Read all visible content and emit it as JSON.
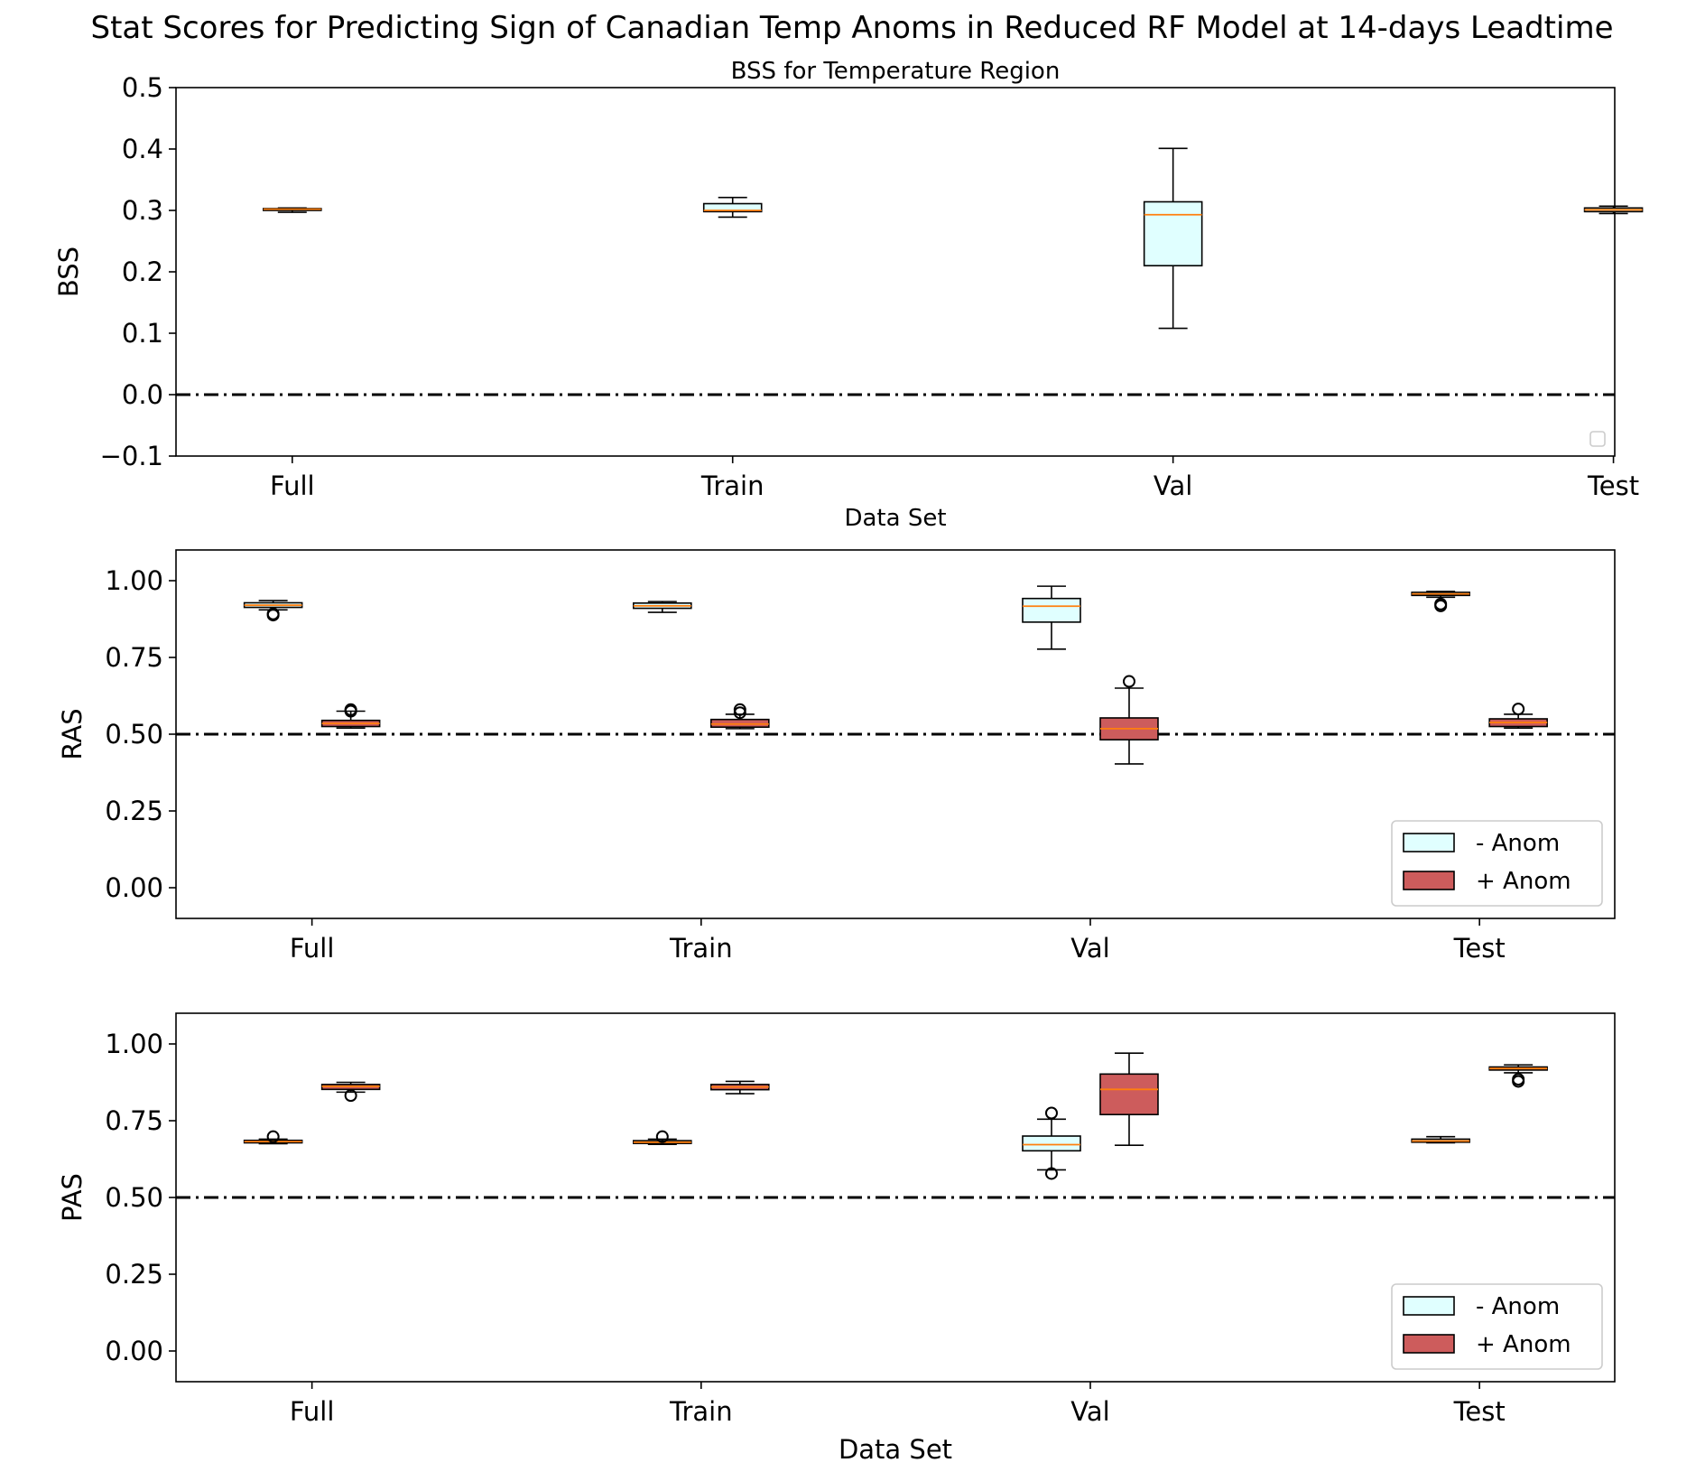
{
  "figure": {
    "suptitle": "Stat Scores for Predicting Sign of Canadian Temp Anoms in Reduced RF Model at 14-days Leadtime"
  },
  "colors": {
    "neg_box_fill": "#E0FFFF",
    "pos_box_fill": "#CD5C5C",
    "median_line": "#FF7F0E",
    "reference_line": "#000000",
    "box_edge": "#000000"
  },
  "chart_data": [
    {
      "type": "box",
      "title": "BSS for Temperature Region",
      "xlabel": "Data Set",
      "ylabel": "BSS",
      "categories": [
        "Full",
        "Train",
        "Val",
        "Test"
      ],
      "ylim": [
        -0.1,
        0.5
      ],
      "yticks": [
        -0.1,
        0.0,
        0.1,
        0.2,
        0.3,
        0.4,
        0.5
      ],
      "ytick_labels": [
        "−0.1",
        "0.0",
        "0.1",
        "0.2",
        "0.3",
        "0.4",
        "0.5"
      ],
      "reference_line": 0.0,
      "legend": {
        "placement": "lower right",
        "entries": []
      },
      "series": [
        {
          "boxes": [
            {
              "category": "Full",
              "whislo": 0.297,
              "q1": 0.3,
              "med": 0.302,
              "q3": 0.303,
              "whishi": 0.304,
              "fliers": []
            },
            {
              "category": "Train",
              "whislo": 0.289,
              "q1": 0.298,
              "med": 0.3,
              "q3": 0.311,
              "whishi": 0.321,
              "fliers": []
            },
            {
              "category": "Val",
              "whislo": 0.108,
              "q1": 0.21,
              "med": 0.293,
              "q3": 0.314,
              "whishi": 0.401,
              "fliers": []
            },
            {
              "category": "Test",
              "whislo": 0.295,
              "q1": 0.298,
              "med": 0.301,
              "q3": 0.304,
              "whishi": 0.307,
              "fliers": []
            }
          ]
        }
      ]
    },
    {
      "type": "box",
      "title": "",
      "xlabel": "",
      "ylabel": "RAS",
      "categories": [
        "Full",
        "Train",
        "Val",
        "Test"
      ],
      "ylim": [
        -0.1,
        1.1
      ],
      "yticks": [
        0.0,
        0.25,
        0.5,
        0.75,
        1.0
      ],
      "ytick_labels": [
        "0.00",
        "0.25",
        "0.50",
        "0.75",
        "1.00"
      ],
      "reference_line": 0.5,
      "legend": {
        "placement": "lower right",
        "entries": [
          "- Anom",
          "+ Anom"
        ]
      },
      "series": [
        {
          "name": "- Anom",
          "boxes": [
            {
              "category": "Full",
              "whislo": 0.905,
              "q1": 0.913,
              "med": 0.92,
              "q3": 0.928,
              "whishi": 0.935,
              "fliers": [
                0.892,
                0.888
              ]
            },
            {
              "category": "Train",
              "whislo": 0.897,
              "q1": 0.91,
              "med": 0.918,
              "q3": 0.927,
              "whishi": 0.932,
              "fliers": []
            },
            {
              "category": "Val",
              "whislo": 0.777,
              "q1": 0.865,
              "med": 0.917,
              "q3": 0.942,
              "whishi": 0.982,
              "fliers": []
            },
            {
              "category": "Test",
              "whislo": 0.946,
              "q1": 0.952,
              "med": 0.957,
              "q3": 0.962,
              "whishi": 0.965,
              "fliers": [
                0.924,
                0.918
              ]
            }
          ]
        },
        {
          "name": "+ Anom",
          "boxes": [
            {
              "category": "Full",
              "whislo": 0.52,
              "q1": 0.525,
              "med": 0.535,
              "q3": 0.545,
              "whishi": 0.575,
              "fliers": [
                0.58,
                0.575
              ]
            },
            {
              "category": "Train",
              "whislo": 0.518,
              "q1": 0.523,
              "med": 0.533,
              "q3": 0.548,
              "whishi": 0.565,
              "fliers": [
                0.58,
                0.57
              ]
            },
            {
              "category": "Val",
              "whislo": 0.403,
              "q1": 0.482,
              "med": 0.518,
              "q3": 0.553,
              "whishi": 0.65,
              "fliers": [
                0.672
              ]
            },
            {
              "category": "Test",
              "whislo": 0.52,
              "q1": 0.525,
              "med": 0.538,
              "q3": 0.55,
              "whishi": 0.565,
              "fliers": [
                0.582
              ]
            }
          ]
        }
      ]
    },
    {
      "type": "box",
      "title": "",
      "xlabel": "Data Set",
      "ylabel": "PAS",
      "categories": [
        "Full",
        "Train",
        "Val",
        "Test"
      ],
      "ylim": [
        -0.1,
        1.1
      ],
      "yticks": [
        0.0,
        0.25,
        0.5,
        0.75,
        1.0
      ],
      "ytick_labels": [
        "0.00",
        "0.25",
        "0.50",
        "0.75",
        "1.00"
      ],
      "reference_line": 0.5,
      "legend": {
        "placement": "lower right",
        "entries": [
          "- Anom",
          "+ Anom"
        ]
      },
      "series": [
        {
          "name": "- Anom",
          "boxes": [
            {
              "category": "Full",
              "whislo": 0.675,
              "q1": 0.678,
              "med": 0.682,
              "q3": 0.686,
              "whishi": 0.69,
              "fliers": [
                0.698
              ]
            },
            {
              "category": "Train",
              "whislo": 0.673,
              "q1": 0.676,
              "med": 0.68,
              "q3": 0.685,
              "whishi": 0.69,
              "fliers": [
                0.698
              ]
            },
            {
              "category": "Val",
              "whislo": 0.59,
              "q1": 0.652,
              "med": 0.672,
              "q3": 0.7,
              "whishi": 0.755,
              "fliers": [
                0.775,
                0.578
              ]
            },
            {
              "category": "Test",
              "whislo": 0.678,
              "q1": 0.68,
              "med": 0.684,
              "q3": 0.69,
              "whishi": 0.698,
              "fliers": []
            }
          ]
        },
        {
          "name": "+ Anom",
          "boxes": [
            {
              "category": "Full",
              "whislo": 0.843,
              "q1": 0.852,
              "med": 0.862,
              "q3": 0.868,
              "whishi": 0.875,
              "fliers": [
                0.832
              ]
            },
            {
              "category": "Train",
              "whislo": 0.838,
              "q1": 0.851,
              "med": 0.86,
              "q3": 0.868,
              "whishi": 0.878,
              "fliers": []
            },
            {
              "category": "Val",
              "whislo": 0.67,
              "q1": 0.77,
              "med": 0.852,
              "q3": 0.902,
              "whishi": 0.97,
              "fliers": []
            },
            {
              "category": "Test",
              "whislo": 0.906,
              "q1": 0.915,
              "med": 0.92,
              "q3": 0.925,
              "whishi": 0.932,
              "fliers": [
                0.885,
                0.878
              ]
            }
          ]
        }
      ]
    }
  ]
}
